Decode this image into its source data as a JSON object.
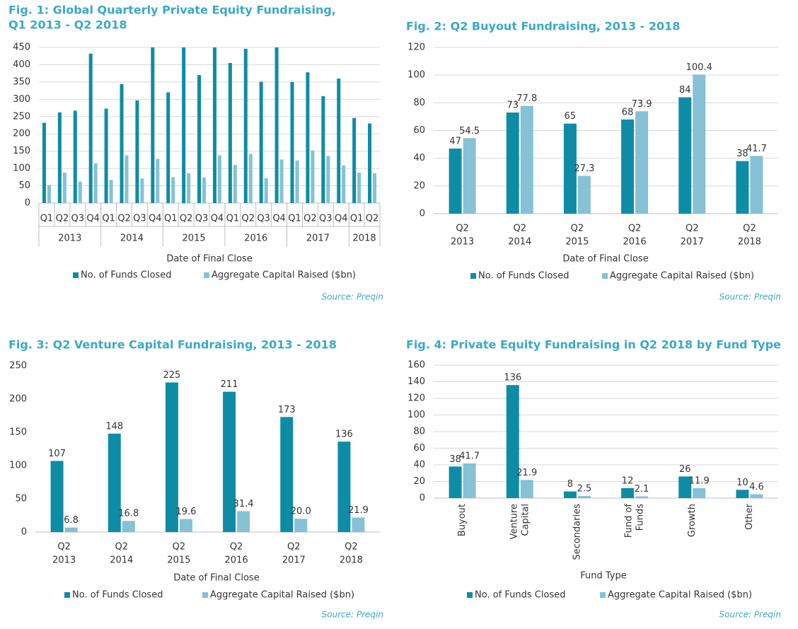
{
  "chart_data": [
    {
      "type": "bar",
      "title": [
        "Fig. 1: Global Quarterly Private Equity Fundraising,",
        "Q1 2013 - Q2 2018"
      ],
      "category_groups": [
        {
          "label": "2013",
          "categories": [
            "Q1",
            "Q2",
            "Q3",
            "Q4"
          ]
        },
        {
          "label": "2014",
          "categories": [
            "Q1",
            "Q2",
            "Q3",
            "Q4"
          ]
        },
        {
          "label": "2015",
          "categories": [
            "Q1",
            "Q2",
            "Q3",
            "Q4"
          ]
        },
        {
          "label": "2016",
          "categories": [
            "Q1",
            "Q2",
            "Q3",
            "Q4"
          ]
        },
        {
          "label": "2017",
          "categories": [
            "Q1",
            "Q2",
            "Q3",
            "Q4"
          ]
        },
        {
          "label": "2018",
          "categories": [
            "Q1",
            "Q2"
          ]
        }
      ],
      "series": [
        {
          "name": "No. of Funds Closed",
          "color": "#0e8ca6",
          "values": [
            232,
            262,
            267,
            432,
            273,
            344,
            297,
            450,
            320,
            450,
            370,
            450,
            405,
            446,
            351,
            450,
            350,
            378,
            309,
            360,
            246,
            230
          ]
        },
        {
          "name": "Aggregate Capital Raised ($bn)",
          "color": "#86c1d6",
          "values": [
            52,
            88,
            62,
            115,
            67,
            138,
            71,
            128,
            75,
            86,
            74,
            138,
            110,
            142,
            72,
            126,
            123,
            152,
            136,
            109,
            88,
            86
          ]
        }
      ],
      "ylim": [
        0,
        450
      ],
      "yticks": [
        0,
        50,
        100,
        150,
        200,
        250,
        300,
        350,
        400,
        450
      ],
      "x_label": "Date of Final Close",
      "source": "Source: Preqin",
      "grid": true,
      "data_labels": false
    },
    {
      "type": "bar",
      "title": [
        "Fig. 2: Q2 Buyout Fundraising, 2013 - 2018"
      ],
      "categories": [
        [
          "Q2",
          "2013"
        ],
        [
          "Q2",
          "2014"
        ],
        [
          "Q2",
          "2015"
        ],
        [
          "Q2",
          "2016"
        ],
        [
          "Q2",
          "2017"
        ],
        [
          "Q2",
          "2018"
        ]
      ],
      "series": [
        {
          "name": "No. of Funds Closed",
          "color": "#0e8ca6",
          "values": [
            47,
            73,
            65,
            68,
            84,
            38
          ]
        },
        {
          "name": "Aggregate Capital Raised ($bn)",
          "color": "#86c1d6",
          "values": [
            54.5,
            77.8,
            27.3,
            73.9,
            100.4,
            41.7
          ]
        }
      ],
      "ylim": [
        0,
        120
      ],
      "yticks": [
        0,
        20,
        40,
        60,
        80,
        100,
        120
      ],
      "x_label": "Date of Final Close",
      "source": "Source: Preqin",
      "grid": true,
      "data_labels": true
    },
    {
      "type": "bar",
      "title": [
        "Fig. 3: Q2 Venture Capital Fundraising, 2013 - 2018"
      ],
      "categories": [
        [
          "Q2",
          "2013"
        ],
        [
          "Q2",
          "2014"
        ],
        [
          "Q2",
          "2015"
        ],
        [
          "Q2",
          "2016"
        ],
        [
          "Q2",
          "2017"
        ],
        [
          "Q2",
          "2018"
        ]
      ],
      "series": [
        {
          "name": "No. of Funds Closed",
          "color": "#0e8ca6",
          "values": [
            107,
            148,
            225,
            211,
            173,
            136
          ]
        },
        {
          "name": "Aggregate Capital Raised ($bn)",
          "color": "#86c1d6",
          "values": [
            6.8,
            16.8,
            19.6,
            31.4,
            20.0,
            21.9
          ],
          "value_labels": [
            "6.8",
            "16.8",
            "19.6",
            "31.4",
            "20.0",
            "21.9"
          ]
        }
      ],
      "ylim": [
        0,
        250
      ],
      "yticks": [
        0,
        50,
        100,
        150,
        200,
        250
      ],
      "x_label": "Date of Final Close",
      "source": "Source: Preqin",
      "grid": false,
      "data_labels": true
    },
    {
      "type": "bar",
      "title": [
        "Fig. 4: Private Equity Fundraising in Q2 2018 by Fund Type"
      ],
      "categories": [
        [
          "Buyout"
        ],
        [
          "Venture",
          "Capital"
        ],
        [
          "Secondaries"
        ],
        [
          "Fund of",
          "Funds"
        ],
        [
          "Growth"
        ],
        [
          "Other"
        ]
      ],
      "rotated_categories": true,
      "series": [
        {
          "name": "No. of Funds Closed",
          "color": "#0e8ca6",
          "values": [
            38,
            136,
            8,
            12,
            26,
            10
          ]
        },
        {
          "name": "Aggregate Capital Raised ($bn)",
          "color": "#86c1d6",
          "values": [
            41.7,
            21.9,
            2.5,
            2.1,
            11.9,
            4.6
          ]
        }
      ],
      "ylim": [
        0,
        160
      ],
      "yticks": [
        0,
        20,
        40,
        60,
        80,
        100,
        120,
        140,
        160
      ],
      "x_label": "Fund Type",
      "source": "Source: Preqin",
      "grid": true,
      "data_labels": true
    }
  ]
}
